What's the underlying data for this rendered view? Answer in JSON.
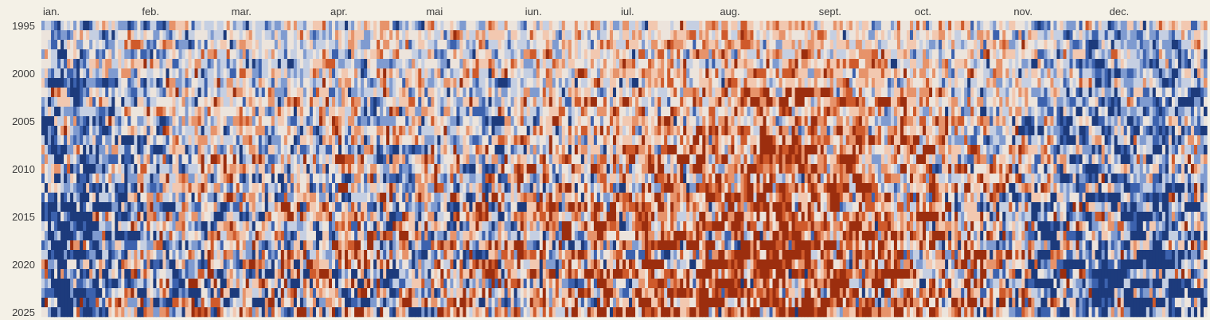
{
  "chart_data": {
    "type": "heatmap",
    "title": "",
    "xlabel": "",
    "ylabel": "",
    "x_axis": {
      "months": [
        "ian.",
        "feb.",
        "mar.",
        "apr.",
        "mai",
        "iun.",
        "iul.",
        "aug.",
        "sept.",
        "oct.",
        "nov.",
        "dec."
      ],
      "month_start_day": [
        1,
        32,
        60,
        91,
        121,
        152,
        182,
        213,
        244,
        274,
        305,
        335
      ],
      "days": 365
    },
    "y_axis": {
      "year_start": 1995,
      "year_end": 2025,
      "tick_labels": [
        "1995",
        "2000",
        "2005",
        "2010",
        "2015",
        "2020",
        "2025"
      ]
    },
    "color_scale": {
      "palette": [
        "#1d3b7c",
        "#3c62ae",
        "#7f9bd0",
        "#c5cfe2",
        "#ece4dc",
        "#f2c8b0",
        "#e7936a",
        "#cf5a2b",
        "#9c2e0e"
      ],
      "meaning": "daily anomaly, cool (blue) to warm (red)"
    },
    "grid": false,
    "legend": "none"
  }
}
